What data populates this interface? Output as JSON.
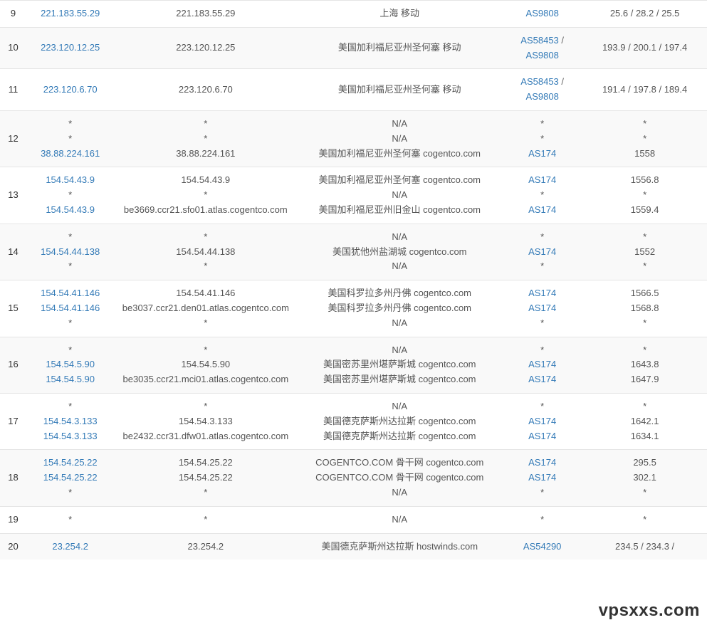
{
  "colors": {
    "link": "#337ab7",
    "text": "#555555",
    "row_alt": "#f9f9f9",
    "row": "#ffffff",
    "border": "#e5e5e5"
  },
  "watermark": "vpsxxs.com",
  "column_widths": {
    "hop": 36,
    "ip": 120,
    "host": 250,
    "loc": 280,
    "asn": 110,
    "lat": 170
  },
  "rows": [
    {
      "hop": "9",
      "ip": [
        {
          "t": "221.183.55.29",
          "l": true
        }
      ],
      "host": [
        {
          "t": "221.183.55.29"
        }
      ],
      "loc": [
        {
          "t": "上海 移动"
        }
      ],
      "asn": [
        {
          "t": "AS9808",
          "l": true
        }
      ],
      "lat": [
        {
          "t": "25.6 / 28.2 / 25.5"
        }
      ]
    },
    {
      "hop": "10",
      "ip": [
        {
          "t": "223.120.12.25",
          "l": true
        }
      ],
      "host": [
        {
          "t": "223.120.12.25"
        }
      ],
      "loc": [
        {
          "t": "美国加利福尼亚州圣何塞 移动"
        }
      ],
      "asn": [
        {
          "t": "AS58453",
          "l": true
        },
        {
          "t": " / ",
          "sep": true
        },
        {
          "t": "AS9808",
          "l": true,
          "nl": true
        }
      ],
      "lat": [
        {
          "t": "193.9 / 200.1 / 197.4"
        }
      ]
    },
    {
      "hop": "11",
      "ip": [
        {
          "t": "223.120.6.70",
          "l": true
        }
      ],
      "host": [
        {
          "t": "223.120.6.70"
        }
      ],
      "loc": [
        {
          "t": "美国加利福尼亚州圣何塞 移动"
        }
      ],
      "asn": [
        {
          "t": "AS58453",
          "l": true
        },
        {
          "t": " / ",
          "sep": true
        },
        {
          "t": "AS9808",
          "l": true,
          "nl": true
        }
      ],
      "lat": [
        {
          "t": "191.4 / 197.8 / 189.4"
        }
      ]
    },
    {
      "hop": "12",
      "ip": [
        {
          "t": "*"
        },
        {
          "t": "*",
          "nl": true
        },
        {
          "t": "38.88.224.161",
          "l": true,
          "nl": true
        }
      ],
      "host": [
        {
          "t": "*"
        },
        {
          "t": "*",
          "nl": true
        },
        {
          "t": "38.88.224.161",
          "nl": true
        }
      ],
      "loc": [
        {
          "t": "N/A"
        },
        {
          "t": "N/A",
          "nl": true
        },
        {
          "t": "美国加利福尼亚州圣何塞 cogentco.com",
          "nl": true
        }
      ],
      "asn": [
        {
          "t": "*"
        },
        {
          "t": "*",
          "nl": true
        },
        {
          "t": "AS174",
          "l": true,
          "nl": true
        }
      ],
      "lat": [
        {
          "t": "*"
        },
        {
          "t": "*",
          "nl": true
        },
        {
          "t": "1558",
          "nl": true
        }
      ]
    },
    {
      "hop": "13",
      "ip": [
        {
          "t": "154.54.43.9",
          "l": true
        },
        {
          "t": "*",
          "nl": true
        },
        {
          "t": "154.54.43.9",
          "l": true,
          "nl": true
        }
      ],
      "host": [
        {
          "t": "154.54.43.9"
        },
        {
          "t": "*",
          "nl": true
        },
        {
          "t": "be3669.ccr21.sfo01.atlas.cogentco.com",
          "nl": true
        }
      ],
      "loc": [
        {
          "t": "美国加利福尼亚州圣何塞 cogentco.com"
        },
        {
          "t": "N/A",
          "nl": true
        },
        {
          "t": "美国加利福尼亚州旧金山 cogentco.com",
          "nl": true
        }
      ],
      "asn": [
        {
          "t": "AS174",
          "l": true
        },
        {
          "t": "*",
          "nl": true
        },
        {
          "t": "AS174",
          "l": true,
          "nl": true
        }
      ],
      "lat": [
        {
          "t": "1556.8"
        },
        {
          "t": "*",
          "nl": true
        },
        {
          "t": "1559.4",
          "nl": true
        }
      ]
    },
    {
      "hop": "14",
      "ip": [
        {
          "t": "*"
        },
        {
          "t": "154.54.44.138",
          "l": true,
          "nl": true
        },
        {
          "t": "*",
          "nl": true
        }
      ],
      "host": [
        {
          "t": "*"
        },
        {
          "t": "154.54.44.138",
          "nl": true
        },
        {
          "t": "*",
          "nl": true
        }
      ],
      "loc": [
        {
          "t": "N/A"
        },
        {
          "t": "美国犹他州盐湖城 cogentco.com",
          "nl": true
        },
        {
          "t": "N/A",
          "nl": true
        }
      ],
      "asn": [
        {
          "t": "*"
        },
        {
          "t": "AS174",
          "l": true,
          "nl": true
        },
        {
          "t": "*",
          "nl": true
        }
      ],
      "lat": [
        {
          "t": "*"
        },
        {
          "t": "1552",
          "nl": true
        },
        {
          "t": "*",
          "nl": true
        }
      ]
    },
    {
      "hop": "15",
      "ip": [
        {
          "t": "154.54.41.146",
          "l": true
        },
        {
          "t": "154.54.41.146",
          "l": true,
          "nl": true
        },
        {
          "t": "*",
          "nl": true
        }
      ],
      "host": [
        {
          "t": "154.54.41.146"
        },
        {
          "t": "be3037.ccr21.den01.atlas.cogentco.com",
          "nl": true
        },
        {
          "t": "*",
          "nl": true
        }
      ],
      "loc": [
        {
          "t": "美国科罗拉多州丹佛 cogentco.com"
        },
        {
          "t": "美国科罗拉多州丹佛 cogentco.com",
          "nl": true
        },
        {
          "t": "N/A",
          "nl": true
        }
      ],
      "asn": [
        {
          "t": "AS174",
          "l": true
        },
        {
          "t": "AS174",
          "l": true,
          "nl": true
        },
        {
          "t": "*",
          "nl": true
        }
      ],
      "lat": [
        {
          "t": "1566.5"
        },
        {
          "t": "1568.8",
          "nl": true
        },
        {
          "t": "*",
          "nl": true
        }
      ]
    },
    {
      "hop": "16",
      "ip": [
        {
          "t": "*"
        },
        {
          "t": "154.54.5.90",
          "l": true,
          "nl": true
        },
        {
          "t": "154.54.5.90",
          "l": true,
          "nl": true
        }
      ],
      "host": [
        {
          "t": "*"
        },
        {
          "t": "154.54.5.90",
          "nl": true
        },
        {
          "t": "be3035.ccr21.mci01.atlas.cogentco.com",
          "nl": true
        }
      ],
      "loc": [
        {
          "t": "N/A"
        },
        {
          "t": "美国密苏里州堪萨斯城 cogentco.com",
          "nl": true
        },
        {
          "t": "美国密苏里州堪萨斯城 cogentco.com",
          "nl": true
        }
      ],
      "asn": [
        {
          "t": "*"
        },
        {
          "t": "AS174",
          "l": true,
          "nl": true
        },
        {
          "t": "AS174",
          "l": true,
          "nl": true
        }
      ],
      "lat": [
        {
          "t": "*"
        },
        {
          "t": "1643.8",
          "nl": true
        },
        {
          "t": "1647.9",
          "nl": true
        }
      ]
    },
    {
      "hop": "17",
      "ip": [
        {
          "t": "*"
        },
        {
          "t": "154.54.3.133",
          "l": true,
          "nl": true
        },
        {
          "t": "154.54.3.133",
          "l": true,
          "nl": true
        }
      ],
      "host": [
        {
          "t": "*"
        },
        {
          "t": "154.54.3.133",
          "nl": true
        },
        {
          "t": "be2432.ccr31.dfw01.atlas.cogentco.com",
          "nl": true
        }
      ],
      "loc": [
        {
          "t": "N/A"
        },
        {
          "t": "美国德克萨斯州达拉斯 cogentco.com",
          "nl": true
        },
        {
          "t": "美国德克萨斯州达拉斯 cogentco.com",
          "nl": true
        }
      ],
      "asn": [
        {
          "t": "*"
        },
        {
          "t": "AS174",
          "l": true,
          "nl": true
        },
        {
          "t": "AS174",
          "l": true,
          "nl": true
        }
      ],
      "lat": [
        {
          "t": "*"
        },
        {
          "t": "1642.1",
          "nl": true
        },
        {
          "t": "1634.1",
          "nl": true
        }
      ]
    },
    {
      "hop": "18",
      "ip": [
        {
          "t": "154.54.25.22",
          "l": true
        },
        {
          "t": "154.54.25.22",
          "l": true,
          "nl": true
        },
        {
          "t": "*",
          "nl": true
        }
      ],
      "host": [
        {
          "t": "154.54.25.22"
        },
        {
          "t": "154.54.25.22",
          "nl": true
        },
        {
          "t": "*",
          "nl": true
        }
      ],
      "loc": [
        {
          "t": "COGENTCO.COM 骨干网 cogentco.com"
        },
        {
          "t": "COGENTCO.COM 骨干网 cogentco.com",
          "nl": true
        },
        {
          "t": "N/A",
          "nl": true
        }
      ],
      "asn": [
        {
          "t": "AS174",
          "l": true
        },
        {
          "t": "AS174",
          "l": true,
          "nl": true
        },
        {
          "t": "*",
          "nl": true
        }
      ],
      "lat": [
        {
          "t": "295.5"
        },
        {
          "t": "302.1",
          "nl": true
        },
        {
          "t": "*",
          "nl": true
        }
      ]
    },
    {
      "hop": "19",
      "ip": [
        {
          "t": "*"
        }
      ],
      "host": [
        {
          "t": "*"
        }
      ],
      "loc": [
        {
          "t": "N/A"
        }
      ],
      "asn": [
        {
          "t": "*"
        }
      ],
      "lat": [
        {
          "t": "*"
        }
      ]
    },
    {
      "hop": "20",
      "ip": [
        {
          "t": "23.254.2",
          "l": true
        }
      ],
      "host": [
        {
          "t": "23.254.2"
        }
      ],
      "loc": [
        {
          "t": "美国德克萨斯州达拉斯 hostwinds.com"
        }
      ],
      "asn": [
        {
          "t": "AS54290",
          "l": true
        }
      ],
      "lat": [
        {
          "t": "234.5 / 234.3 /"
        }
      ]
    }
  ]
}
